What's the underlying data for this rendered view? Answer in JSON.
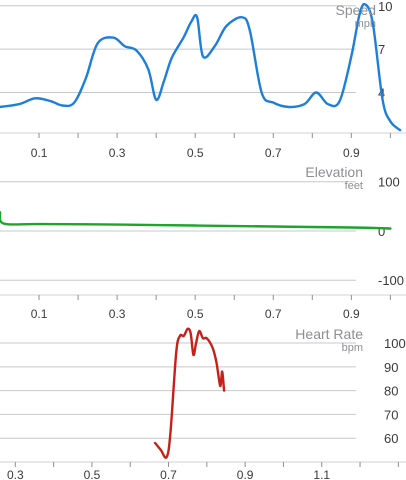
{
  "chart_data": [
    {
      "type": "line",
      "title": "Speed",
      "unit": "mph",
      "color": "#1e7fd8",
      "yticks": [
        4,
        7,
        10
      ],
      "ylim": [
        1.2,
        10.4
      ],
      "xticks": [
        "0.1",
        "0.3",
        "0.5",
        "0.7",
        "0.9"
      ],
      "xtick_values": [
        0.1,
        0.3,
        0.5,
        0.7,
        0.9
      ],
      "xlim": [
        0.0,
        1.04
      ],
      "grid": true,
      "series": [
        {
          "x": [
            0.0,
            0.05,
            0.09,
            0.13,
            0.16,
            0.19,
            0.22,
            0.25,
            0.29,
            0.32,
            0.35,
            0.38,
            0.4,
            0.42,
            0.44,
            0.47,
            0.49,
            0.505,
            0.52,
            0.55,
            0.58,
            0.62,
            0.64,
            0.67,
            0.7,
            0.74,
            0.78,
            0.81,
            0.84,
            0.87,
            0.9,
            0.92,
            0.935,
            0.955,
            0.98,
            1.0,
            1.025
          ],
          "y": [
            3.0,
            3.2,
            3.6,
            3.4,
            3.1,
            3.3,
            5.0,
            7.4,
            7.8,
            7.2,
            6.9,
            5.6,
            3.5,
            4.8,
            6.4,
            7.8,
            8.9,
            9.2,
            6.5,
            7.2,
            8.6,
            9.2,
            8.3,
            4.0,
            3.3,
            3.0,
            3.2,
            4.0,
            3.2,
            3.4,
            6.5,
            9.3,
            10.1,
            8.8,
            3.5,
            2.0,
            1.4
          ]
        }
      ]
    },
    {
      "type": "line",
      "title": "Elevation",
      "unit": "feet",
      "color": "#1aa52c",
      "yticks": [
        -100,
        0,
        100
      ],
      "ylim": [
        -130,
        140
      ],
      "xticks": [
        "0.1",
        "0.3",
        "0.5",
        "0.7",
        "0.9"
      ],
      "xtick_values": [
        0.1,
        0.3,
        0.5,
        0.7,
        0.9
      ],
      "xlim": [
        0.0,
        1.04
      ],
      "grid": true,
      "series": [
        {
          "x": [
            0.0,
            0.01,
            0.1,
            0.3,
            0.5,
            0.7,
            0.9,
            1.0
          ],
          "y": [
            38,
            15,
            14,
            13,
            11,
            9,
            7,
            5
          ]
        }
      ]
    },
    {
      "type": "line",
      "title": "Heart Rate",
      "unit": "bpm",
      "color": "#c62118",
      "yticks": [
        60,
        70,
        80,
        90,
        100
      ],
      "ylim": [
        50,
        108
      ],
      "xticks": [
        "0.3",
        "0.5",
        "0.7",
        "0.9",
        "1.1"
      ],
      "xtick_values": [
        0.3,
        0.5,
        0.7,
        0.9,
        1.1
      ],
      "xlim": [
        0.26,
        1.32
      ],
      "grid": true,
      "series": [
        {
          "x": [
            0.665,
            0.68,
            0.695,
            0.705,
            0.72,
            0.73,
            0.74,
            0.75,
            0.758,
            0.765,
            0.772,
            0.78,
            0.79,
            0.8,
            0.815,
            0.825,
            0.835,
            0.84,
            0.845
          ],
          "y": [
            58,
            55,
            52,
            62,
            96,
            103,
            103,
            106,
            104,
            95,
            100,
            105,
            102,
            102,
            98,
            92,
            82,
            88,
            80
          ]
        }
      ]
    }
  ]
}
